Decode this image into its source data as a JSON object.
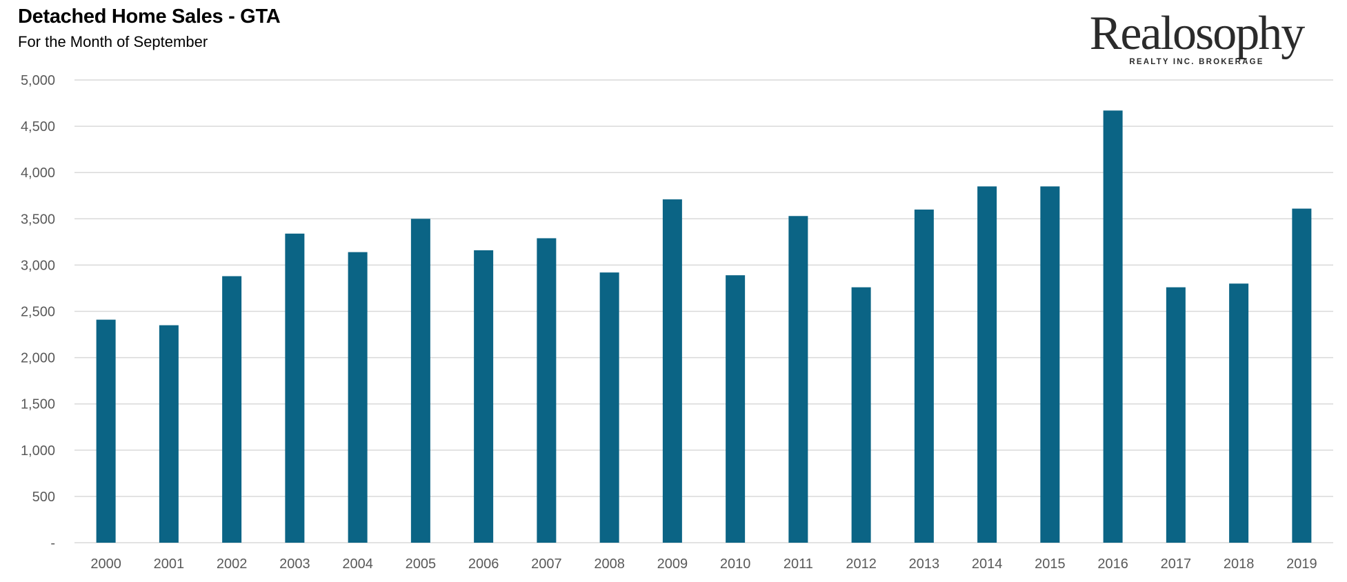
{
  "header": {
    "title": "Detached Home Sales - GTA",
    "subtitle": "For the Month of September"
  },
  "logo": {
    "name": "Realosophy",
    "tagline": "REALTY INC. BROKERAGE"
  },
  "colors": {
    "bar": "#0b6485",
    "grid": "#d9d9d9",
    "axis_text": "#595959"
  },
  "chart_data": {
    "type": "bar",
    "title": "Detached Home Sales - GTA",
    "subtitle": "For the Month of September",
    "xlabel": "",
    "ylabel": "",
    "categories": [
      "2000",
      "2001",
      "2002",
      "2003",
      "2004",
      "2005",
      "2006",
      "2007",
      "2008",
      "2009",
      "2010",
      "2011",
      "2012",
      "2013",
      "2014",
      "2015",
      "2016",
      "2017",
      "2018",
      "2019"
    ],
    "values": [
      2410,
      2350,
      2880,
      3340,
      3140,
      3500,
      3160,
      3290,
      2920,
      3710,
      2890,
      3530,
      2760,
      3600,
      3850,
      3850,
      4670,
      2760,
      2800,
      3610
    ],
    "ylim": [
      0,
      5000
    ],
    "yticks": [
      0,
      500,
      1000,
      1500,
      2000,
      2500,
      3000,
      3500,
      4000,
      4500,
      5000
    ],
    "ytick_labels": [
      "-",
      "500",
      "1,000",
      "1,500",
      "2,000",
      "2,500",
      "3,000",
      "3,500",
      "4,000",
      "4,500",
      "5,000"
    ],
    "grid": true,
    "legend": "none"
  }
}
